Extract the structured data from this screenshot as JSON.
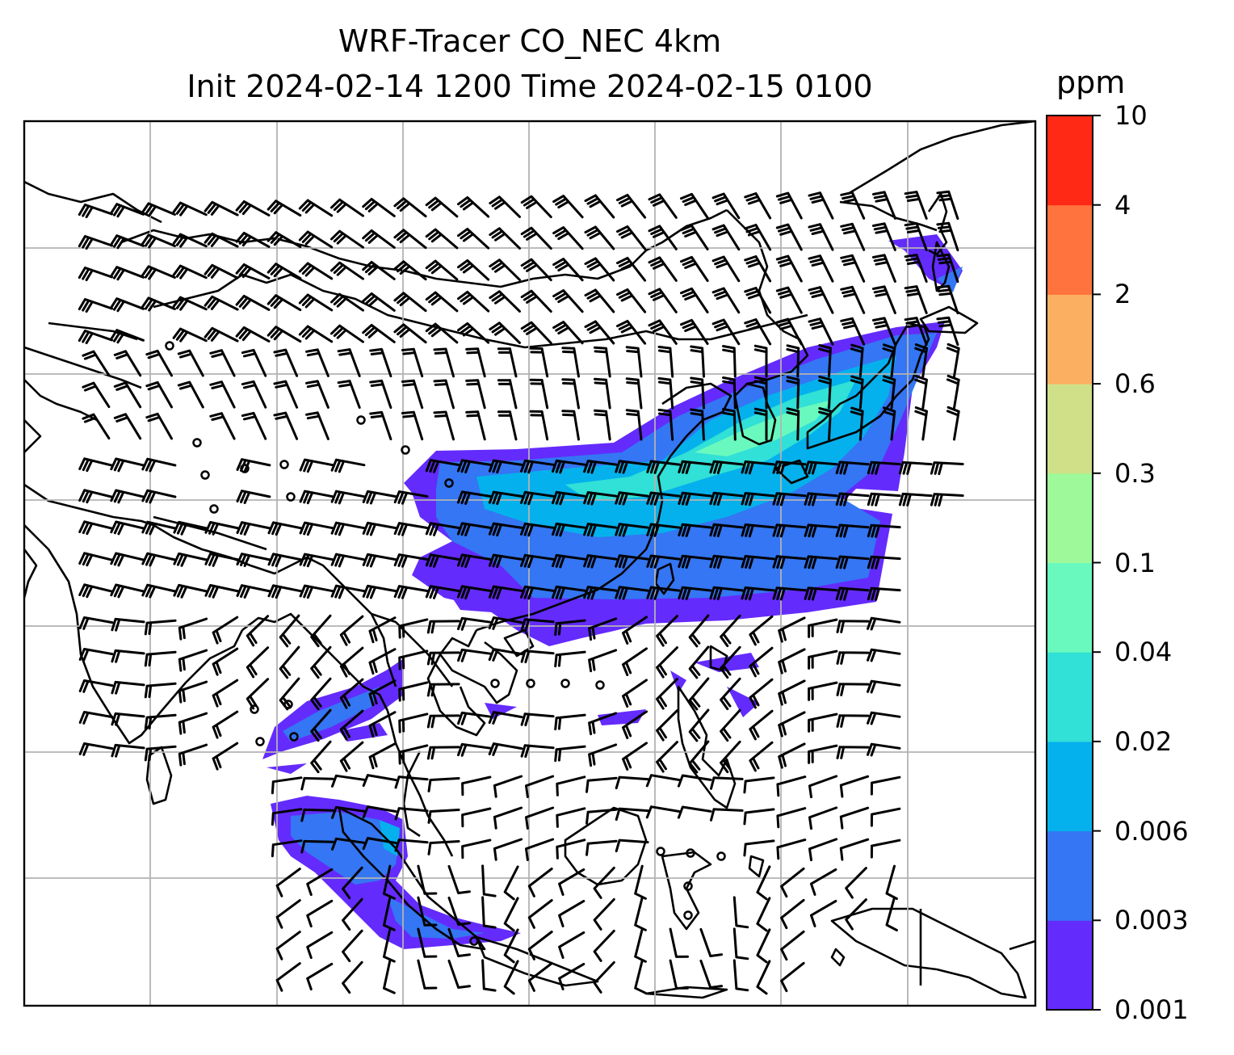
{
  "title_line1": "WRF-Tracer CO_NEC 4km",
  "title_line2": "Init 2024-02-14 1200 Time 2024-02-15 0100",
  "colorbar": {
    "unit": "ppm",
    "levels": [
      "0.001",
      "0.003",
      "0.006",
      "0.02",
      "0.04",
      "0.1",
      "0.3",
      "0.6",
      "2",
      "4",
      "10"
    ],
    "colors": [
      "#642bfd",
      "#3476f3",
      "#05b1ec",
      "#31e0d6",
      "#69f9bf",
      "#9df999",
      "#cfe088",
      "#fbb061",
      "#ff733e",
      "#ff2915"
    ]
  },
  "map": {
    "gridlines": "on",
    "overlay": "wind barbs",
    "coastline_color": "#000000",
    "grid_color": "#b3b3b3"
  }
}
